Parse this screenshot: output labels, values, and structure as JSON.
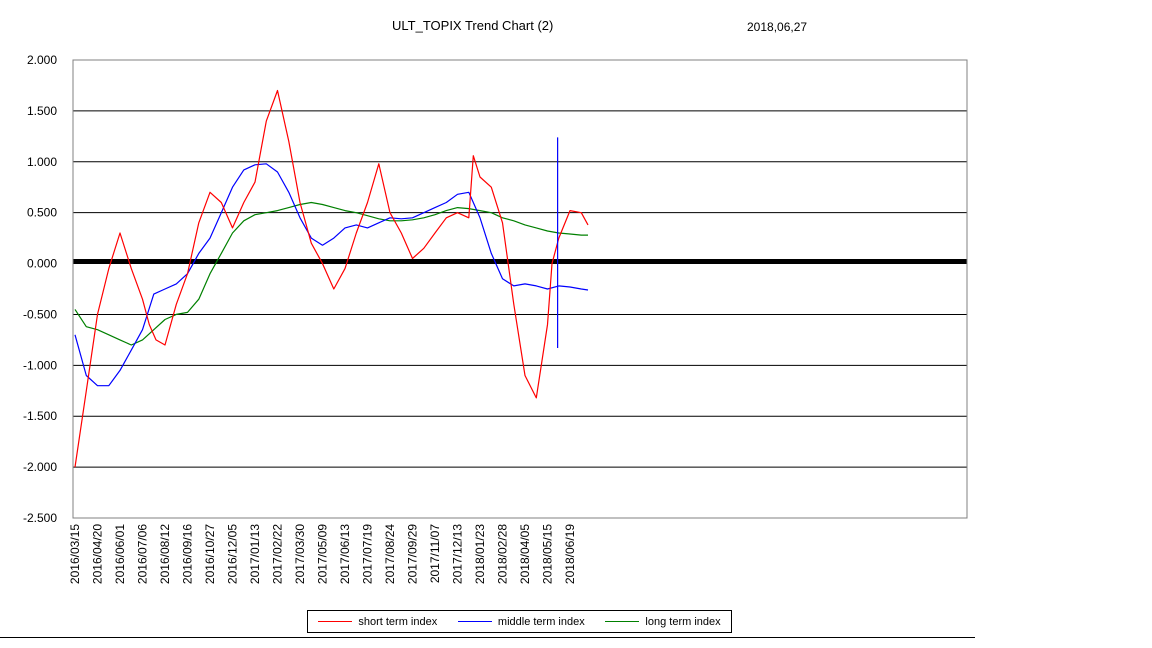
{
  "header": {
    "title": "ULT_TOPIX Trend Chart (2)",
    "date": "2018,06,27"
  },
  "colors": {
    "short": "#ff0000",
    "middle": "#0000ff",
    "long": "#008000",
    "zero_line": "#000000",
    "grid": "#000000"
  },
  "chart_data": {
    "type": "line",
    "title": "ULT_TOPIX Trend Chart (2)",
    "xlabel": "",
    "ylabel": "",
    "ylim": [
      -2.5,
      2.0
    ],
    "grid": true,
    "legend_position": "bottom",
    "y_ticks": [
      "2.000",
      "1.500",
      "1.000",
      "0.500",
      "0.000",
      "-0.500",
      "-1.000",
      "-1.500",
      "-2.000",
      "-2.500"
    ],
    "y_tick_values": [
      2.0,
      1.5,
      1.0,
      0.5,
      0.0,
      -0.5,
      -1.0,
      -1.5,
      -2.0,
      -2.5
    ],
    "x_tick_labels": [
      "2016/03/15",
      "2016/04/20",
      "2016/06/01",
      "2016/07/06",
      "2016/08/12",
      "2016/09/16",
      "2016/10/27",
      "2016/12/05",
      "2017/01/13",
      "2017/02/22",
      "2017/03/30",
      "2017/05/09",
      "2017/06/13",
      "2017/07/19",
      "2017/08/24",
      "2017/09/29",
      "2017/11/07",
      "2017/12/13",
      "2018/01/23",
      "2018/02/28",
      "2018/04/05",
      "2018/05/15",
      "2018/06/19"
    ],
    "x_range_points": 40,
    "series": [
      {
        "name": "short term index",
        "x": [
          0,
          0.5,
          1,
          1.5,
          2,
          2.5,
          3,
          3.3,
          3.6,
          4,
          4.5,
          5,
          5.5,
          6,
          6.5,
          7,
          7.5,
          8,
          8.5,
          9,
          9.5,
          10,
          10.5,
          11,
          11.5,
          12,
          12.5,
          13,
          13.5,
          14,
          14.5,
          15,
          15.5,
          16,
          16.5,
          17,
          17.5,
          17.7,
          18,
          18.5,
          19,
          19.5,
          20,
          20.5,
          21,
          21.2,
          21.5,
          22,
          22.5,
          22.8
        ],
        "y": [
          -2.0,
          -1.25,
          -0.5,
          -0.05,
          0.3,
          -0.05,
          -0.35,
          -0.6,
          -0.75,
          -0.8,
          -0.4,
          -0.1,
          0.4,
          0.7,
          0.6,
          0.35,
          0.6,
          0.8,
          1.4,
          1.7,
          1.2,
          0.6,
          0.2,
          0.0,
          -0.25,
          -0.05,
          0.3,
          0.6,
          0.98,
          0.5,
          0.3,
          0.05,
          0.15,
          0.3,
          0.45,
          0.5,
          0.45,
          1.06,
          0.85,
          0.75,
          0.4,
          -0.4,
          -1.1,
          -1.32,
          -0.6,
          0.0,
          0.25,
          0.52,
          0.5,
          0.38
        ]
      },
      {
        "name": "middle term index",
        "x": [
          0,
          0.5,
          1,
          1.5,
          2,
          2.5,
          3,
          3.5,
          4,
          4.5,
          5,
          5.5,
          6,
          6.5,
          7,
          7.5,
          8,
          8.5,
          9,
          9.5,
          10,
          10.5,
          11,
          11.5,
          12,
          12.5,
          13,
          13.5,
          14,
          14.5,
          15,
          15.5,
          16,
          16.5,
          17,
          17.5,
          18,
          18.5,
          19,
          19.5,
          20,
          20.5,
          21,
          21.5,
          22,
          22.5,
          22.8
        ],
        "y": [
          -0.7,
          -1.1,
          -1.2,
          -1.2,
          -1.05,
          -0.85,
          -0.65,
          -0.3,
          -0.25,
          -0.2,
          -0.1,
          0.1,
          0.25,
          0.5,
          0.75,
          0.92,
          0.97,
          0.98,
          0.9,
          0.7,
          0.45,
          0.25,
          0.18,
          0.25,
          0.35,
          0.38,
          0.35,
          0.4,
          0.45,
          0.44,
          0.45,
          0.5,
          0.55,
          0.6,
          0.68,
          0.7,
          0.45,
          0.1,
          -0.15,
          -0.22,
          -0.2,
          -0.22,
          -0.25,
          -0.22,
          -0.23,
          -0.25,
          -0.26
        ]
      },
      {
        "name": "long term index",
        "x": [
          0,
          0.5,
          1,
          1.5,
          2,
          2.5,
          3,
          3.5,
          4,
          4.5,
          5,
          5.5,
          6,
          6.5,
          7,
          7.5,
          8,
          8.5,
          9,
          9.5,
          10,
          10.5,
          11,
          11.5,
          12,
          12.5,
          13,
          13.5,
          14,
          14.5,
          15,
          15.5,
          16,
          16.5,
          17,
          17.5,
          18,
          18.5,
          19,
          19.5,
          20,
          20.5,
          21,
          21.5,
          22,
          22.5,
          22.8
        ],
        "y": [
          -0.45,
          -0.62,
          -0.65,
          -0.7,
          -0.75,
          -0.8,
          -0.75,
          -0.65,
          -0.55,
          -0.5,
          -0.48,
          -0.35,
          -0.1,
          0.1,
          0.3,
          0.42,
          0.48,
          0.5,
          0.52,
          0.55,
          0.58,
          0.6,
          0.58,
          0.55,
          0.52,
          0.5,
          0.47,
          0.44,
          0.42,
          0.42,
          0.43,
          0.45,
          0.48,
          0.52,
          0.55,
          0.54,
          0.52,
          0.5,
          0.45,
          0.42,
          0.38,
          0.35,
          0.32,
          0.3,
          0.29,
          0.28,
          0.28
        ]
      }
    ],
    "marker": {
      "x": 21.45,
      "y_top": 1.24,
      "y_bottom": -0.83
    }
  },
  "legend": {
    "short": "short term index",
    "middle": "middle term index",
    "long": "long term index"
  }
}
